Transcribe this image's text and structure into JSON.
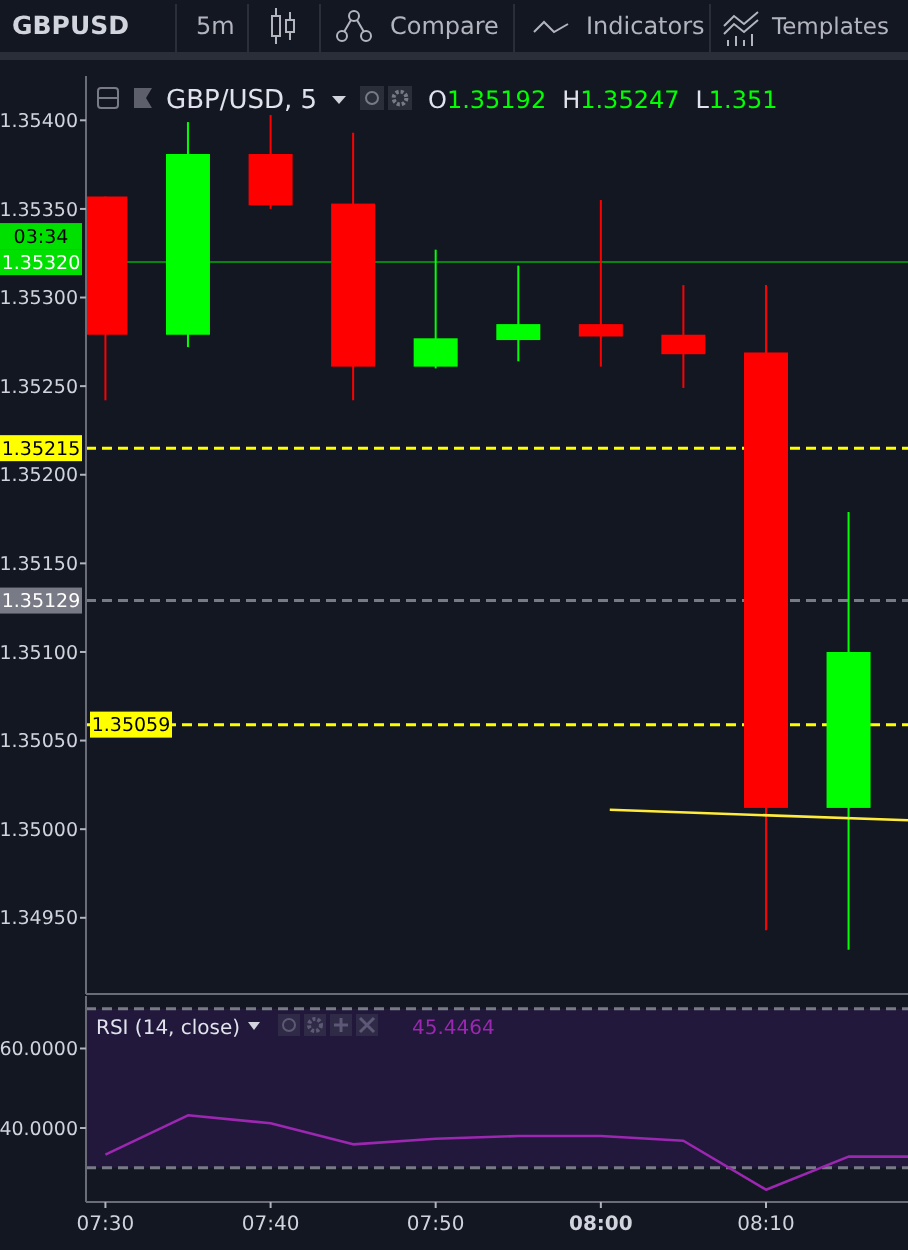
{
  "chart_data": [
    {
      "type": "candlestick",
      "title": "GBP/USD, 5",
      "annotations": [
        "GBPUSD",
        "5m",
        "Compare",
        "Indicators",
        "Templates",
        "O1.35192 H1.35247 L1.351",
        "03:34"
      ],
      "x": [
        7.5,
        7.5833,
        7.6667,
        7.75,
        7.8333,
        7.9167,
        8.0,
        8.0833,
        8.1667,
        8.25
      ],
      "ohlc": [
        [
          1.35357,
          1.35357,
          1.35242,
          1.35279
        ],
        [
          1.35279,
          1.35399,
          1.35272,
          1.35381
        ],
        [
          1.35381,
          1.35403,
          1.3535,
          1.35352
        ],
        [
          1.35353,
          1.35393,
          1.35242,
          1.35261
        ],
        [
          1.35261,
          1.35327,
          1.3526,
          1.35277
        ],
        [
          1.35276,
          1.35318,
          1.35264,
          1.35285
        ],
        [
          1.35285,
          1.35355,
          1.35261,
          1.35278
        ],
        [
          1.35279,
          1.35307,
          1.35249,
          1.35268
        ],
        [
          1.35269,
          1.35307,
          1.34943,
          1.35012
        ],
        [
          1.35012,
          1.35179,
          1.34932,
          1.351
        ]
      ],
      "colors": [
        "#ff0000",
        "#00ff00",
        "#ff0000",
        "#ff0000",
        "#00ff00",
        "#00ff00",
        "#ff0000",
        "#ff0000",
        "#ff0000",
        "#00ff00"
      ],
      "series": [
        {
          "type": "line",
          "x": [
            8.009,
            8.31
          ],
          "values": [
            1.35011,
            1.35005
          ],
          "color": "#ffeb3b"
        }
      ],
      "xlim": [
        7.4804,
        8.31
      ],
      "ylim": [
        1.34907,
        1.35425
      ],
      "yticks": [
        {
          "value": 1.3495,
          "label": "1.34950"
        },
        {
          "value": 1.35,
          "label": "1.35000"
        },
        {
          "value": 1.3505,
          "label": "1.35050"
        },
        {
          "value": 1.351,
          "label": "1.35100"
        },
        {
          "value": 1.3515,
          "label": "1.35150"
        },
        {
          "value": 1.352,
          "label": "1.35200"
        },
        {
          "value": 1.3525,
          "label": "1.35250"
        },
        {
          "value": 1.353,
          "label": "1.35300"
        },
        {
          "value": 1.3535,
          "label": "1.35350"
        },
        {
          "value": 1.354,
          "label": "1.35400"
        }
      ],
      "ref_lines": [
        {
          "axis": "y",
          "value": 1.3532,
          "label": "1.35320",
          "color": "#00e000",
          "line_style": "solid"
        },
        {
          "axis": "y",
          "value": 1.35215,
          "label": "1.35215",
          "color": "#ffff00",
          "line_style": "dashed"
        },
        {
          "axis": "y",
          "value": 1.35129,
          "label": "1.35129",
          "color": "#787b86",
          "line_style": "dashed"
        },
        {
          "axis": "y",
          "value": 1.35059,
          "label": "1.35059",
          "color": "#ffff00",
          "line_style": "dashed"
        }
      ],
      "tick_labels": "y",
      "grid": false
    },
    {
      "type": "line",
      "title": "RSI (14, close)",
      "annotations": [
        "45.4464"
      ],
      "x": [
        7.5,
        7.5833,
        7.6667,
        7.75,
        7.8333,
        7.9167,
        8.0,
        8.0833,
        8.1667,
        8.25,
        8.31
      ],
      "series": [
        {
          "color": "#9c27b0",
          "values": [
            33.3,
            43.2,
            41.2,
            35.9,
            37.3,
            38.0,
            38.0,
            36.8,
            24.5,
            32.8,
            32.8
          ]
        }
      ],
      "xlim": [
        7.4804,
        8.31
      ],
      "xticks": [
        {
          "value": 7.5,
          "label": "07:30"
        },
        {
          "value": 7.6667,
          "label": "07:40"
        },
        {
          "value": 7.8333,
          "label": "07:50"
        },
        {
          "value": 8.0,
          "label": "08:00"
        },
        {
          "value": 8.1667,
          "label": "08:10"
        }
      ],
      "ylim": [
        21.4,
        73.2
      ],
      "yticks": [
        {
          "value": 40,
          "label": "40.0000"
        },
        {
          "value": 60,
          "label": "60.0000"
        }
      ],
      "ref_lines": [
        {
          "axis": "y",
          "value": 70,
          "color": "#787b86",
          "line_style": "dashed"
        },
        {
          "axis": "y",
          "value": 30,
          "color": "#787b86",
          "line_style": "dashed"
        }
      ],
      "bands": [
        {
          "axis": "y",
          "from": 30,
          "to": 70,
          "color": "#21183c"
        }
      ],
      "grid": false,
      "marker": "none",
      "line_style": "solid"
    }
  ]
}
